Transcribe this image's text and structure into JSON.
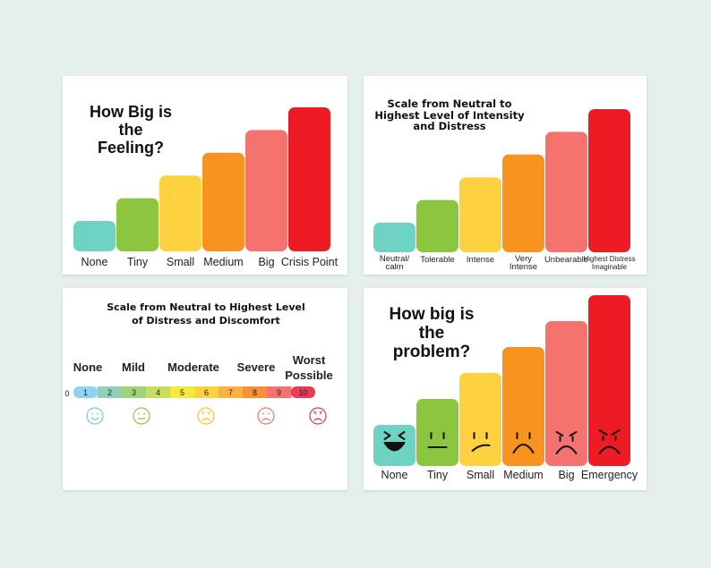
{
  "colors": {
    "teal": "#6fd3c3",
    "green": "#8cc63f",
    "yellow": "#fdd13f",
    "orange": "#f7931e",
    "salmon": "#f4736f",
    "red": "#ed1c24"
  },
  "chart_data": [
    {
      "type": "bar",
      "title": "How Big is the Feeling?",
      "title_lines": [
        "How Big is",
        "the",
        "Feeling?"
      ],
      "categories": [
        "None",
        "Tiny",
        "Small",
        "Medium",
        "Big",
        "Crisis Point"
      ],
      "values": [
        1,
        2,
        3,
        4,
        5,
        6
      ],
      "colors": [
        "#6fd3c3",
        "#8cc63f",
        "#fdd13f",
        "#f7931e",
        "#f4736f",
        "#ed1c24"
      ]
    },
    {
      "type": "bar",
      "title": "Scale from Neutral to Highest Level of Intensity and Distress",
      "title_lines": [
        "Scale from Neutral to",
        "Highest Level of Intensity",
        "and Distress"
      ],
      "categories": [
        "Neutral/ calm",
        "Tolerable",
        "Intense",
        "Very Intense",
        "Unbearable",
        "Highest Distress Imaginable"
      ],
      "category_lines": [
        [
          "Neutral/",
          "calm"
        ],
        [
          "Tolerable"
        ],
        [
          "Intense"
        ],
        [
          "Very",
          "Intense"
        ],
        [
          "Unbearable"
        ],
        [
          "Highest Distress",
          "Imaginable"
        ]
      ],
      "values": [
        1,
        2,
        3,
        4,
        5,
        6
      ],
      "colors": [
        "#6fd3c3",
        "#8cc63f",
        "#fdd13f",
        "#f7931e",
        "#f4736f",
        "#ed1c24"
      ]
    },
    {
      "type": "table",
      "title": "Scale from Neutral to Highest Level of Distress and Discomfort",
      "title_lines": [
        "Scale from Neutral to Highest Level",
        "of Distress and Discomfort"
      ],
      "levels": [
        "None",
        "Mild",
        "Moderate",
        "Severe",
        "Worst Possible"
      ],
      "level_lines": [
        [
          "None"
        ],
        [
          "Mild"
        ],
        [
          "Moderate"
        ],
        [
          "Severe"
        ],
        [
          "Worst",
          "Possible"
        ]
      ],
      "scale": [
        "0",
        "1",
        "2",
        "3",
        "4",
        "5",
        "6",
        "7",
        "8",
        "9",
        "10"
      ],
      "scale_colors": [
        "#ffffff",
        "#8fd3f0",
        "#8ed1b8",
        "#9fd37a",
        "#c8de5c",
        "#f5e93b",
        "#fdd13f",
        "#fbb040",
        "#f8903a",
        "#f4736f",
        "#ed3a55"
      ],
      "faces": [
        "smile-face-icon",
        "neutral-face-icon",
        "worried-face-icon",
        "sad-face-icon",
        "crying-face-icon"
      ],
      "face_colors": [
        "#6dc8ea",
        "#8cc63f",
        "#fdbf2d",
        "#f4736f",
        "#e5334b"
      ]
    },
    {
      "type": "bar",
      "title": "How big is the problem?",
      "title_lines": [
        "How big is",
        "the",
        "problem?"
      ],
      "categories": [
        "None",
        "Tiny",
        "Small",
        "Medium",
        "Big",
        "Emergency"
      ],
      "values": [
        1,
        2,
        3,
        4,
        5,
        6
      ],
      "colors": [
        "#6fd3c3",
        "#8cc63f",
        "#fdd13f",
        "#f7931e",
        "#f4736f",
        "#ed1c24"
      ],
      "faces": [
        "laughing-face-icon",
        "flat-face-icon",
        "unsure-face-icon",
        "frown-face-icon",
        "crying-face-icon",
        "angry-face-icon"
      ]
    }
  ]
}
